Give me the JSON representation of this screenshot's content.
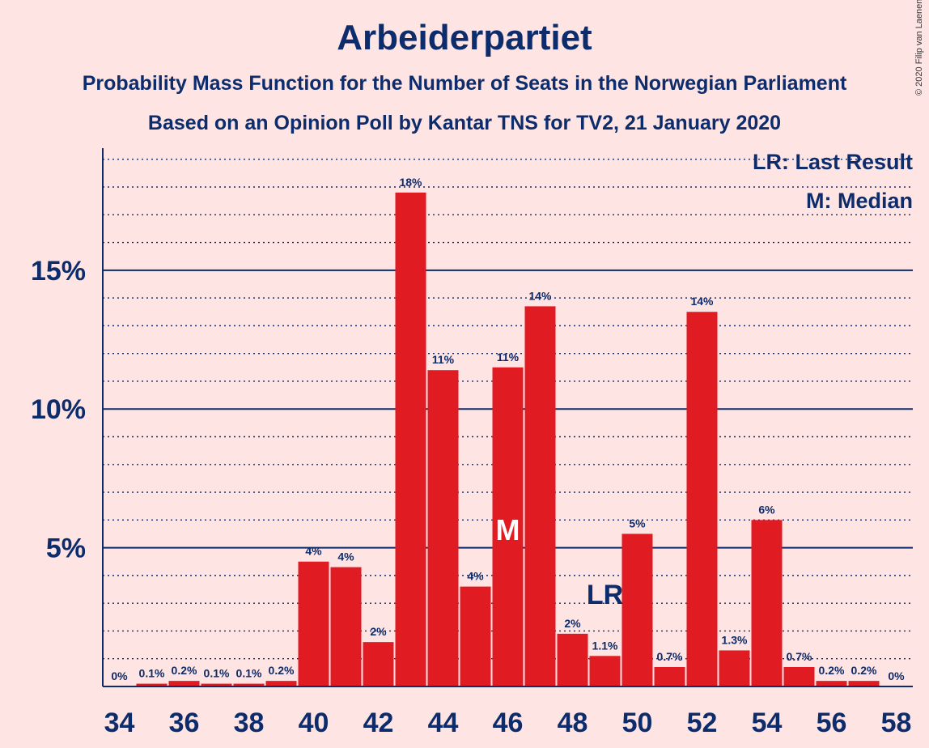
{
  "chart_data": {
    "type": "bar",
    "title": "Arbeiderpartiet",
    "subtitle": "Probability Mass Function for the Number of Seats in the Norwegian Parliament",
    "subtitle2": "Based on an Opinion Poll by Kantar TNS for TV2, 21 January 2020",
    "copyright": "© 2020 Filip van Laenen",
    "legend": {
      "lr": "LR: Last Result",
      "m": "M: Median",
      "placement": "top-right"
    },
    "x": [
      34,
      35,
      36,
      37,
      38,
      39,
      40,
      41,
      42,
      43,
      44,
      45,
      46,
      47,
      48,
      49,
      50,
      51,
      52,
      53,
      54,
      55,
      56,
      57,
      58
    ],
    "values": [
      0,
      0.1,
      0.2,
      0.1,
      0.1,
      0.2,
      4.5,
      4.3,
      1.6,
      17.8,
      11.4,
      3.6,
      11.5,
      13.7,
      1.9,
      1.1,
      5.5,
      0.7,
      13.5,
      1.3,
      6.0,
      0.7,
      0.2,
      0.2,
      0
    ],
    "data_labels": [
      "0%",
      "0.1%",
      "0.2%",
      "0.1%",
      "0.1%",
      "0.2%",
      "4%",
      "4%",
      "2%",
      "18%",
      "11%",
      "4%",
      "11%",
      "14%",
      "2%",
      "1.1%",
      "5%",
      "0.7%",
      "14%",
      "1.3%",
      "6%",
      "0.7%",
      "0.2%",
      "0.2%",
      "0%"
    ],
    "x_tick_labels": [
      "34",
      "36",
      "38",
      "40",
      "42",
      "44",
      "46",
      "48",
      "50",
      "52",
      "54",
      "56",
      "58"
    ],
    "y_ticks": [
      5,
      10,
      15
    ],
    "y_tick_labels": [
      "5%",
      "10%",
      "15%"
    ],
    "ylim": [
      0,
      19.4
    ],
    "median_seat": 46,
    "median_marker": "M",
    "last_result_seat": 49,
    "last_result_marker": "LR",
    "grid": true,
    "bar_color": "#e01b22",
    "text_color": "#0c2c6b"
  }
}
